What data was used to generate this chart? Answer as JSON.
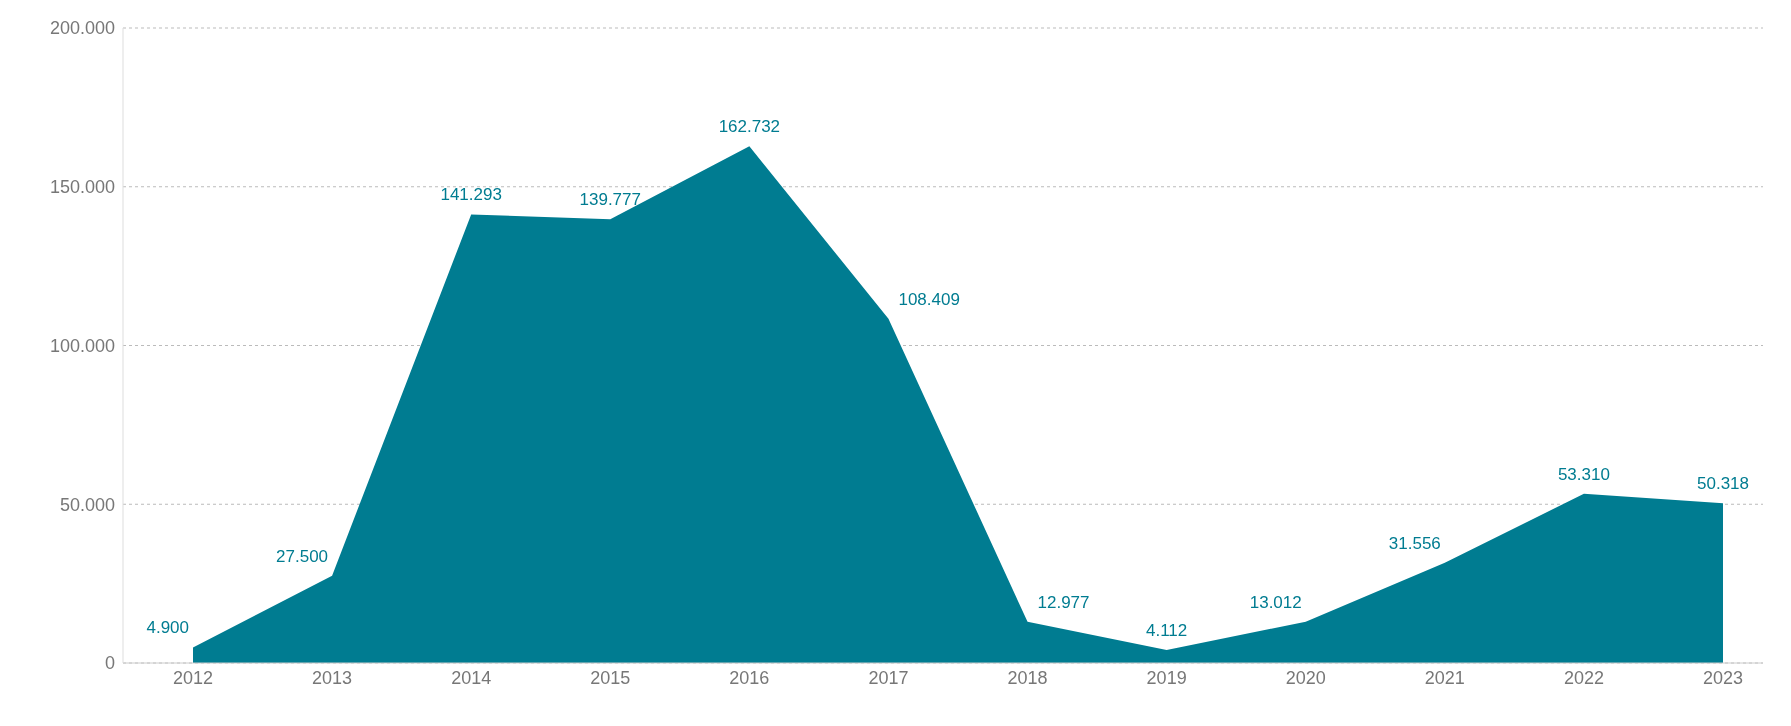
{
  "chart_data": {
    "type": "area",
    "categories": [
      "2012",
      "2013",
      "2014",
      "2015",
      "2016",
      "2017",
      "2018",
      "2019",
      "2020",
      "2021",
      "2022",
      "2023"
    ],
    "series": [
      {
        "color": "#007c91",
        "values": [
          4900,
          27500,
          141293,
          139777,
          162732,
          108409,
          12977,
          4112,
          13012,
          31556,
          53310,
          50318
        ],
        "value_labels": [
          "4.900",
          "27.500",
          "141.293",
          "139.777",
          "162.732",
          "108.409",
          "12.977",
          "4.112",
          "13.012",
          "31.556",
          "53.310",
          "50.318"
        ]
      }
    ],
    "ylim": [
      0,
      200000
    ],
    "yticks": [
      {
        "value": 0,
        "label": "0"
      },
      {
        "value": 50000,
        "label": "50.000"
      },
      {
        "value": 100000,
        "label": "100.000"
      },
      {
        "value": 150000,
        "label": "150.000"
      },
      {
        "value": 200000,
        "label": "200.000"
      }
    ],
    "grid": "y",
    "legend": false
  }
}
